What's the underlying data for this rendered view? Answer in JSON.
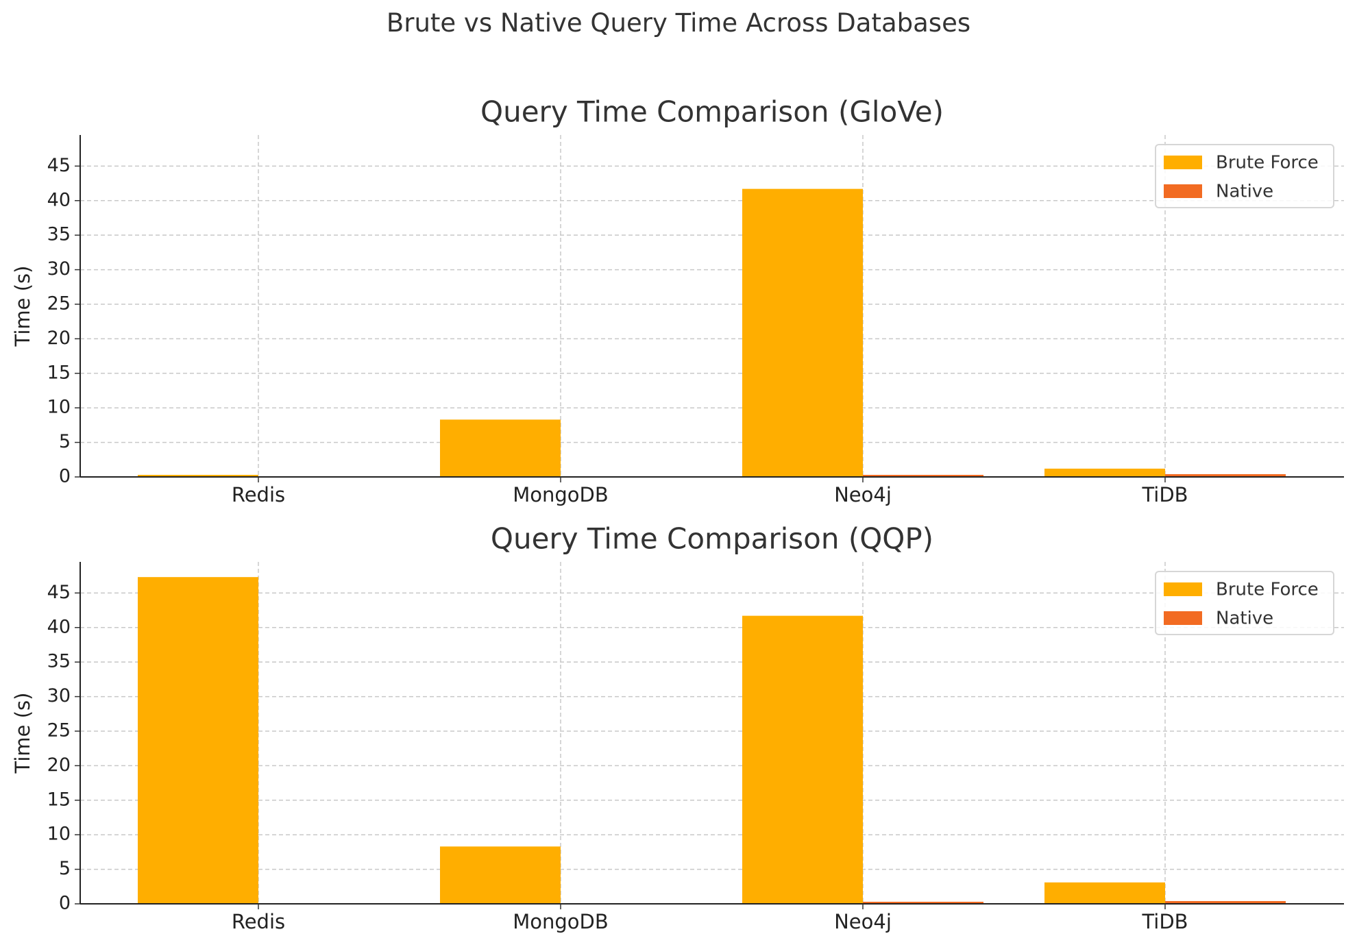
{
  "figure": {
    "suptitle": "Brute vs Native Query Time Across Databases"
  },
  "chart_data": [
    {
      "type": "bar",
      "title": "Query Time Comparison (GloVe)",
      "xlabel": "",
      "ylabel": "Time (s)",
      "categories": [
        "Redis",
        "MongoDB",
        "Neo4j",
        "TiDB"
      ],
      "series": [
        {
          "name": "Brute Force",
          "color": "#FFAE00",
          "values": [
            0.3,
            8.3,
            41.7,
            1.2
          ]
        },
        {
          "name": "Native",
          "color": "#F26B22",
          "values": [
            0.02,
            0.05,
            0.3,
            0.4
          ]
        }
      ],
      "ylim": [
        0,
        49.5
      ],
      "yticks": [
        0,
        5,
        10,
        15,
        20,
        25,
        30,
        35,
        40,
        45
      ],
      "grid": true,
      "legend": "top-right"
    },
    {
      "type": "bar",
      "title": "Query Time Comparison (QQP)",
      "xlabel": "",
      "ylabel": "Time (s)",
      "categories": [
        "Redis",
        "MongoDB",
        "Neo4j",
        "TiDB"
      ],
      "series": [
        {
          "name": "Brute Force",
          "color": "#FFAE00",
          "values": [
            47.3,
            8.3,
            41.7,
            3.1
          ]
        },
        {
          "name": "Native",
          "color": "#F26B22",
          "values": [
            0.02,
            0.05,
            0.3,
            0.4
          ]
        }
      ],
      "ylim": [
        0,
        49.5
      ],
      "yticks": [
        0,
        5,
        10,
        15,
        20,
        25,
        30,
        35,
        40,
        45
      ],
      "grid": true,
      "legend": "top-right"
    }
  ]
}
